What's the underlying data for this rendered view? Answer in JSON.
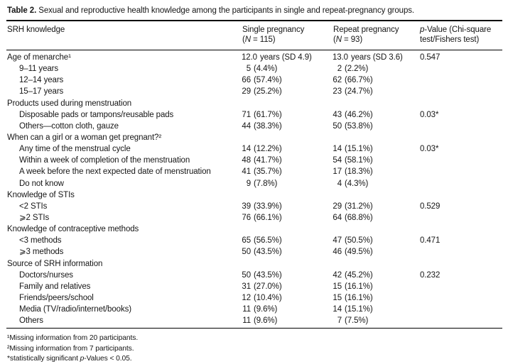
{
  "title": {
    "label": "Table 2.",
    "text": "Sexual and reproductive health knowledge among the participants in single and repeat-pregnancy groups."
  },
  "table": {
    "columns": {
      "col1": "SRH knowledge",
      "col2": {
        "line1": "Single pregnancy",
        "open": "(",
        "n": "N",
        "rest": " = 115)"
      },
      "col3": {
        "line1": "Repeat pregnancy",
        "open": "(",
        "n": "N",
        "rest": " = 93)"
      },
      "col4": {
        "p": "p",
        "rest1": "-Value (Chi-square",
        "line2": "test/Fishers test)"
      }
    },
    "rows": [
      {
        "label": "Age of menarche¹",
        "indent": false,
        "c1n": "12.0",
        "c1r": "years (SD 4.9)",
        "c2n": "13.0",
        "c2r": "years (SD 3.6)",
        "p": "0.547"
      },
      {
        "label": "9–11 years",
        "indent": true,
        "c1n": "5",
        "c1r": "(4.4%)",
        "c2n": "2",
        "c2r": "(2.2%)",
        "p": ""
      },
      {
        "label": "12–14 years",
        "indent": true,
        "c1n": "66",
        "c1r": "(57.4%)",
        "c2n": "62",
        "c2r": "(66.7%)",
        "p": ""
      },
      {
        "label": "15–17 years",
        "indent": true,
        "c1n": "29",
        "c1r": "(25.2%)",
        "c2n": "23",
        "c2r": "(24.7%)",
        "p": ""
      },
      {
        "label": "Products used during menstruation",
        "indent": false,
        "c1n": "",
        "c1r": "",
        "c2n": "",
        "c2r": "",
        "p": ""
      },
      {
        "label": "Disposable pads or tampons/reusable pads",
        "indent": true,
        "c1n": "71",
        "c1r": "(61.7%)",
        "c2n": "43",
        "c2r": "(46.2%)",
        "p": "0.03*"
      },
      {
        "label": "Others—cotton cloth, gauze",
        "indent": true,
        "c1n": "44",
        "c1r": "(38.3%)",
        "c2n": "50",
        "c2r": "(53.8%)",
        "p": ""
      },
      {
        "label": "When can a girl or a woman get pregnant?²",
        "indent": false,
        "c1n": "",
        "c1r": "",
        "c2n": "",
        "c2r": "",
        "p": ""
      },
      {
        "label": "Any time of the menstrual cycle",
        "indent": true,
        "c1n": "14",
        "c1r": "(12.2%)",
        "c2n": "14",
        "c2r": "(15.1%)",
        "p": "0.03*"
      },
      {
        "label": "Within a week of completion of the menstruation",
        "indent": true,
        "c1n": "48",
        "c1r": "(41.7%)",
        "c2n": "54",
        "c2r": "(58.1%)",
        "p": ""
      },
      {
        "label": "A week before the next expected date of menstruation",
        "indent": true,
        "c1n": "41",
        "c1r": "(35.7%)",
        "c2n": "17",
        "c2r": "(18.3%)",
        "p": ""
      },
      {
        "label": "Do not know",
        "indent": true,
        "c1n": "9",
        "c1r": "(7.8%)",
        "c2n": "4",
        "c2r": "(4.3%)",
        "p": ""
      },
      {
        "label": "Knowledge of STIs",
        "indent": false,
        "c1n": "",
        "c1r": "",
        "c2n": "",
        "c2r": "",
        "p": ""
      },
      {
        "label": "<2 STIs",
        "indent": true,
        "c1n": "39",
        "c1r": "(33.9%)",
        "c2n": "29",
        "c2r": "(31.2%)",
        "p": "0.529"
      },
      {
        "label": "⩾2 STIs",
        "indent": true,
        "c1n": "76",
        "c1r": "(66.1%)",
        "c2n": "64",
        "c2r": "(68.8%)",
        "p": ""
      },
      {
        "label": "Knowledge of contraceptive methods",
        "indent": false,
        "c1n": "",
        "c1r": "",
        "c2n": "",
        "c2r": "",
        "p": ""
      },
      {
        "label": "<3 methods",
        "indent": true,
        "c1n": "65",
        "c1r": "(56.5%)",
        "c2n": "47",
        "c2r": "(50.5%)",
        "p": "0.471"
      },
      {
        "label": "⩾3 methods",
        "indent": true,
        "c1n": "50",
        "c1r": "(43.5%)",
        "c2n": "46",
        "c2r": "(49.5%)",
        "p": ""
      },
      {
        "label": "Source of SRH information",
        "indent": false,
        "c1n": "",
        "c1r": "",
        "c2n": "",
        "c2r": "",
        "p": ""
      },
      {
        "label": "Doctors/nurses",
        "indent": true,
        "c1n": "50",
        "c1r": "(43.5%)",
        "c2n": "42",
        "c2r": "(45.2%)",
        "p": "0.232"
      },
      {
        "label": "Family and relatives",
        "indent": true,
        "c1n": "31",
        "c1r": "(27.0%)",
        "c2n": "15",
        "c2r": "(16.1%)",
        "p": ""
      },
      {
        "label": "Friends/peers/school",
        "indent": true,
        "c1n": "12",
        "c1r": "(10.4%)",
        "c2n": "15",
        "c2r": "(16.1%)",
        "p": ""
      },
      {
        "label": "Media (TV/radio/internet/books)",
        "indent": true,
        "c1n": "11",
        "c1r": "(9.6%)",
        "c2n": "14",
        "c2r": "(15.1%)",
        "p": ""
      },
      {
        "label": "Others",
        "indent": true,
        "c1n": "11",
        "c1r": "(9.6%)",
        "c2n": "7",
        "c2r": "(7.5%)",
        "p": ""
      }
    ],
    "footnotes": {
      "note1": "¹Missing information from 20 participants.",
      "note2": "²Missing information from 7 participants.",
      "note3_pre": "*statistically significant ",
      "note3_p": "p",
      "note3_post": "-Values < 0.05."
    }
  }
}
